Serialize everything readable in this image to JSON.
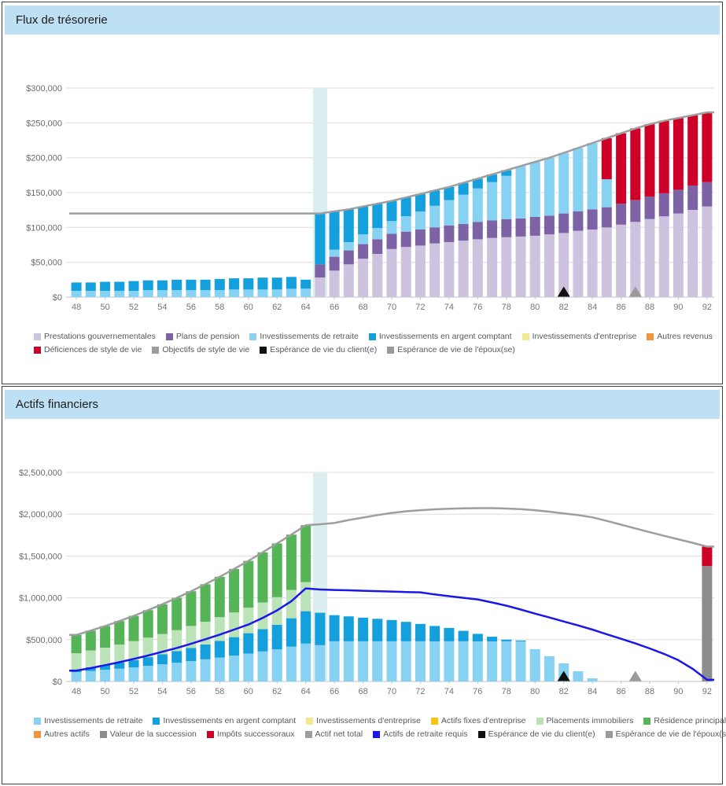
{
  "panels": [
    {
      "title": "Flux de trésorerie"
    },
    {
      "title": "Actifs financiers"
    }
  ],
  "chart_data": [
    {
      "type": "bar",
      "title": "Flux de trésorerie",
      "values_unit": "thousands of dollars",
      "x_label": "age",
      "x": [
        48,
        49,
        50,
        51,
        52,
        53,
        54,
        55,
        56,
        57,
        58,
        59,
        60,
        61,
        62,
        63,
        64,
        65,
        66,
        67,
        68,
        69,
        70,
        71,
        72,
        73,
        74,
        75,
        76,
        77,
        78,
        79,
        80,
        81,
        82,
        83,
        84,
        85,
        86,
        87,
        88,
        89,
        90,
        91,
        92
      ],
      "ylim": [
        0,
        300
      ],
      "ytick_values": [
        300,
        250,
        200,
        150,
        100,
        50,
        0
      ],
      "ytick_labels": [
        "$300,000",
        "$250,000",
        "$200,000",
        "$150,000",
        "$100,000",
        "$50,000",
        "$0"
      ],
      "grid": true,
      "highlight_band_age": 65,
      "highlight_band_color": "#dceeef",
      "bar_series": [
        {
          "name": "Prestations gouvernementales",
          "color": "#cdc3df",
          "values": [
            0,
            0,
            0,
            0,
            0,
            0,
            0,
            0,
            0,
            0,
            0,
            0,
            0,
            0,
            0,
            0,
            0,
            28,
            38,
            47,
            55,
            62,
            69,
            72,
            74,
            77,
            79,
            81,
            83,
            85,
            86,
            87,
            88,
            90,
            92,
            95,
            97,
            100,
            104,
            108,
            112,
            116,
            120,
            125,
            130
          ]
        },
        {
          "name": "Plans de pension",
          "color": "#7d62a5",
          "values": [
            0,
            0,
            0,
            0,
            0,
            0,
            0,
            0,
            0,
            0,
            0,
            0,
            0,
            0,
            0,
            0,
            0,
            19,
            20,
            20,
            21,
            21,
            22,
            22,
            23,
            23,
            24,
            24,
            25,
            25,
            26,
            26,
            27,
            27,
            28,
            28,
            29,
            29,
            30,
            31,
            32,
            33,
            34,
            35,
            35
          ]
        },
        {
          "name": "Investissements de retraite",
          "color": "#87d2f2",
          "values": [
            9,
            9,
            9,
            9,
            9,
            10,
            10,
            10,
            10,
            10,
            10,
            11,
            11,
            11,
            11,
            12,
            12,
            0,
            10,
            12,
            14,
            16,
            18,
            22,
            26,
            31,
            36,
            42,
            48,
            55,
            62,
            75,
            79,
            83,
            87,
            91,
            95,
            40,
            0,
            0,
            0,
            0,
            0,
            0,
            0
          ]
        },
        {
          "name": "Investissements en argent comptant",
          "color": "#14a0dc",
          "values": [
            12,
            12,
            13,
            13,
            14,
            14,
            14,
            15,
            15,
            15,
            16,
            16,
            16,
            17,
            17,
            17,
            13,
            73,
            55,
            47,
            40,
            35,
            29,
            27,
            25,
            22,
            19,
            17,
            14,
            11,
            8,
            0,
            0,
            0,
            0,
            0,
            0,
            0,
            0,
            0,
            0,
            0,
            0,
            0,
            0
          ]
        },
        {
          "name": "Déficiences de style de vie",
          "color": "#ce0028",
          "values": [
            0,
            0,
            0,
            0,
            0,
            0,
            0,
            0,
            0,
            0,
            0,
            0,
            0,
            0,
            0,
            0,
            0,
            0,
            0,
            0,
            0,
            0,
            0,
            0,
            0,
            0,
            0,
            0,
            0,
            0,
            0,
            0,
            0,
            0,
            0,
            0,
            0,
            59,
            101,
            103,
            104,
            104,
            103,
            101,
            100
          ]
        }
      ],
      "line_series": [
        {
          "name": "Objectifs de style de vie",
          "color": "#9e9e9e",
          "values": [
            120,
            120,
            120,
            120,
            120,
            120,
            120,
            120,
            120,
            120,
            120,
            120,
            120,
            120,
            120,
            120,
            120,
            120,
            123,
            126,
            130,
            134,
            138,
            143,
            148,
            153,
            158,
            164,
            170,
            176,
            182,
            188,
            194,
            200,
            207,
            214,
            221,
            228,
            235,
            242,
            248,
            253,
            257,
            261,
            265
          ]
        }
      ],
      "markers": [
        {
          "name": "Espérance de vie du client(e)",
          "age": 82,
          "color": "#111111"
        },
        {
          "name": "Espérance de vie de l'époux(se)",
          "age": 87,
          "color": "#9a9a9a"
        }
      ],
      "legend_rows": [
        [
          {
            "label": "Prestations gouvernementales",
            "color": "#cdc3df"
          },
          {
            "label": "Plans de pension",
            "color": "#7d62a5"
          },
          {
            "label": "Investissements de retraite",
            "color": "#87d2f2"
          },
          {
            "label": "Investissements en argent comptant",
            "color": "#14a0dc"
          },
          {
            "label": "Investissements d'entreprise",
            "color": "#f1e88f"
          },
          {
            "label": "Autres revenus",
            "color": "#f0953c"
          }
        ],
        [
          {
            "label": "Déficiences de style de vie",
            "color": "#ce0028"
          },
          {
            "label": "Objectifs de style de vie",
            "color": "#9e9e9e"
          },
          {
            "label": "Espérance de vie du client(e)",
            "color": "#111111"
          },
          {
            "label": "Espérance de vie de l'époux(se)",
            "color": "#9a9a9a"
          }
        ]
      ]
    },
    {
      "type": "bar",
      "title": "Actifs financiers",
      "values_unit": "thousands of dollars",
      "x_label": "age",
      "x": [
        48,
        49,
        50,
        51,
        52,
        53,
        54,
        55,
        56,
        57,
        58,
        59,
        60,
        61,
        62,
        63,
        64,
        65,
        66,
        67,
        68,
        69,
        70,
        71,
        72,
        73,
        74,
        75,
        76,
        77,
        78,
        79,
        80,
        81,
        82,
        83,
        84,
        85,
        86,
        87,
        88,
        89,
        90,
        91,
        92
      ],
      "ylim": [
        0,
        2500
      ],
      "ytick_values": [
        2500,
        2000,
        1500,
        1000,
        500,
        0
      ],
      "ytick_labels": [
        "$2,500,000",
        "$2,000,000",
        "$1,500,000",
        "$1,000,000",
        "$500,000",
        "$0"
      ],
      "grid": true,
      "highlight_band_age": 65,
      "highlight_band_color": "#dceeef",
      "bar_series": [
        {
          "name": "Investissements de retraite",
          "color": "#87d2f2",
          "values": [
            112,
            125,
            139,
            154,
            170,
            187,
            205,
            224,
            244,
            265,
            287,
            310,
            334,
            359,
            385,
            418,
            453,
            434,
            480,
            480,
            480,
            480,
            480,
            480,
            480,
            480,
            480,
            480,
            480,
            480,
            480,
            480,
            387,
            302,
            217,
            123,
            38,
            0,
            0,
            0,
            0,
            0,
            0,
            0,
            0
          ]
        },
        {
          "name": "Investissements en argent comptant",
          "color": "#14a0dc",
          "values": [
            32,
            45,
            58,
            72,
            87,
            103,
            120,
            138,
            157,
            177,
            198,
            220,
            243,
            267,
            292,
            338,
            387,
            387,
            312,
            298,
            283,
            269,
            255,
            232,
            208,
            184,
            160,
            125,
            90,
            55,
            20,
            10,
            0,
            0,
            0,
            0,
            0,
            0,
            0,
            0,
            0,
            0,
            0,
            0,
            0
          ]
        },
        {
          "name": "Placements immobiliers",
          "color": "#bce3b7",
          "values": [
            193,
            200,
            208,
            216,
            225,
            234,
            243,
            253,
            263,
            273,
            284,
            295,
            306,
            318,
            330,
            339,
            348,
            0,
            0,
            0,
            0,
            0,
            0,
            0,
            0,
            0,
            0,
            0,
            0,
            0,
            0,
            0,
            0,
            0,
            0,
            0,
            0,
            0,
            0,
            0,
            0,
            0,
            0,
            0,
            0
          ]
        },
        {
          "name": "Résidence principale",
          "color": "#55b455",
          "values": [
            219,
            238,
            258,
            280,
            303,
            328,
            355,
            384,
            415,
            448,
            483,
            520,
            559,
            600,
            643,
            661,
            680,
            0,
            0,
            0,
            0,
            0,
            0,
            0,
            0,
            0,
            0,
            0,
            0,
            0,
            0,
            0,
            0,
            0,
            0,
            0,
            0,
            0,
            0,
            0,
            0,
            0,
            0,
            0,
            0
          ]
        },
        {
          "name": "Valeur de la succession",
          "color": "#8d8d8d",
          "values": [
            0,
            0,
            0,
            0,
            0,
            0,
            0,
            0,
            0,
            0,
            0,
            0,
            0,
            0,
            0,
            0,
            0,
            0,
            0,
            0,
            0,
            0,
            0,
            0,
            0,
            0,
            0,
            0,
            0,
            0,
            0,
            0,
            0,
            0,
            0,
            0,
            0,
            0,
            0,
            0,
            0,
            0,
            0,
            0,
            1380
          ]
        },
        {
          "name": "Impôts successoraux",
          "color": "#ce0028",
          "values": [
            0,
            0,
            0,
            0,
            0,
            0,
            0,
            0,
            0,
            0,
            0,
            0,
            0,
            0,
            0,
            0,
            0,
            0,
            0,
            0,
            0,
            0,
            0,
            0,
            0,
            0,
            0,
            0,
            0,
            0,
            0,
            0,
            0,
            0,
            0,
            0,
            0,
            0,
            0,
            0,
            0,
            0,
            0,
            0,
            233
          ]
        }
      ],
      "line_series": [
        {
          "name": "Actif net total",
          "color": "#9e9e9e",
          "values": [
            556,
            608,
            663,
            722,
            785,
            852,
            923,
            999,
            1079,
            1163,
            1252,
            1345,
            1442,
            1544,
            1650,
            1756,
            1868,
            1880,
            1895,
            1930,
            1960,
            1990,
            2015,
            2035,
            2048,
            2058,
            2065,
            2070,
            2072,
            2072,
            2068,
            2060,
            2048,
            2030,
            2008,
            1990,
            1962,
            1920,
            1875,
            1830,
            1785,
            1742,
            1700,
            1658,
            1613
          ]
        },
        {
          "name": "Actifs de retraite requis",
          "color": "#1a17e8",
          "values": [
            130,
            160,
            195,
            230,
            270,
            310,
            355,
            400,
            450,
            505,
            560,
            620,
            680,
            760,
            850,
            960,
            1113,
            1100,
            1094,
            1090,
            1085,
            1080,
            1075,
            1070,
            1066,
            1040,
            1020,
            1000,
            981,
            945,
            906,
            860,
            811,
            765,
            717,
            670,
            620,
            565,
            510,
            455,
            395,
            330,
            255,
            150,
            20
          ]
        }
      ],
      "markers": [
        {
          "name": "Espérance de vie du client(e)",
          "age": 82,
          "color": "#111111"
        },
        {
          "name": "Espérance de vie de l'époux(se)",
          "age": 87,
          "color": "#9a9a9a"
        }
      ],
      "legend_rows": [
        [
          {
            "label": "Investissements de retraite",
            "color": "#87d2f2"
          },
          {
            "label": "Investissements en argent comptant",
            "color": "#14a0dc"
          },
          {
            "label": "Investissements d'entreprise",
            "color": "#f1e88f"
          },
          {
            "label": "Actifs fixes d'entreprise",
            "color": "#f5c50f"
          },
          {
            "label": "Placements immobiliers",
            "color": "#bce3b7"
          },
          {
            "label": "Résidence principale",
            "color": "#55b455"
          }
        ],
        [
          {
            "label": "Autres actifs",
            "color": "#f0953c"
          },
          {
            "label": "Valeur de la succession",
            "color": "#8d8d8d"
          },
          {
            "label": "Impôts successoraux",
            "color": "#ce0028"
          },
          {
            "label": "Actif net total",
            "color": "#9e9e9e"
          },
          {
            "label": "Actifs de retraite requis",
            "color": "#1a17e8"
          },
          {
            "label": "Espérance de vie du client(e)",
            "color": "#111111"
          },
          {
            "label": "Espérance de vie de l'époux(se)",
            "color": "#9a9a9a"
          }
        ]
      ]
    }
  ]
}
